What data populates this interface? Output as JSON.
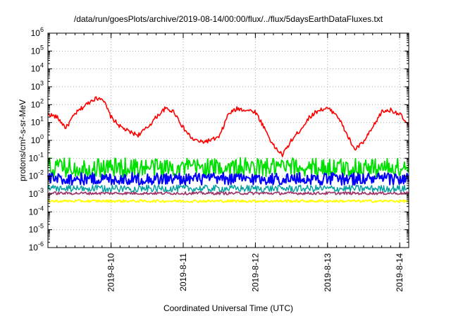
{
  "chart_data": {
    "type": "line",
    "title": "/data/run/goesPlots/archive/2019-08-14/00:00/flux/../flux/5daysEarthDataFluxes.txt",
    "xlabel": "Coordinated Universal Time (UTC)",
    "ylabel": "protons/cm²-s-sr-MeV",
    "yscale": "log",
    "ylim": [
      1e-06,
      1000000.0
    ],
    "xlim": [
      "2019-8-09 03:00",
      "2019-8-14 03:00"
    ],
    "grid": true,
    "y_ticks": [
      {
        "base": "10",
        "exp": "-6"
      },
      {
        "base": "10",
        "exp": "-5"
      },
      {
        "base": "10",
        "exp": "-4"
      },
      {
        "base": "10",
        "exp": "-3"
      },
      {
        "base": "10",
        "exp": "-2"
      },
      {
        "base": "10",
        "exp": "-1"
      },
      {
        "base": "10",
        "exp": "0"
      },
      {
        "base": "10",
        "exp": "1"
      },
      {
        "base": "10",
        "exp": "2"
      },
      {
        "base": "10",
        "exp": "3"
      },
      {
        "base": "10",
        "exp": "4"
      },
      {
        "base": "10",
        "exp": "5"
      },
      {
        "base": "10",
        "exp": "6"
      }
    ],
    "x_ticks": [
      "2019-8-10",
      "2019-8-11",
      "2019-8-12",
      "2019-8-13",
      "2019-8-14"
    ],
    "series": [
      {
        "color": "#ff0000",
        "x": [
          "2019-8-09 03:00",
          "2019-8-09 06:00",
          "2019-8-09 09:00",
          "2019-8-09 12:00",
          "2019-8-09 15:00",
          "2019-8-09 18:00",
          "2019-8-09 21:00",
          "2019-8-10 00:00",
          "2019-8-10 03:00",
          "2019-8-10 06:00",
          "2019-8-10 09:00",
          "2019-8-10 12:00",
          "2019-8-10 15:00",
          "2019-8-10 18:00",
          "2019-8-10 21:00",
          "2019-8-11 00:00",
          "2019-8-11 03:00",
          "2019-8-11 06:00",
          "2019-8-11 09:00",
          "2019-8-11 12:00",
          "2019-8-11 15:00",
          "2019-8-11 18:00",
          "2019-8-11 21:00",
          "2019-8-12 00:00",
          "2019-8-12 03:00",
          "2019-8-12 06:00",
          "2019-8-12 09:00",
          "2019-8-12 12:00",
          "2019-8-12 15:00",
          "2019-8-12 18:00",
          "2019-8-12 21:00",
          "2019-8-13 00:00",
          "2019-8-13 03:00",
          "2019-8-13 06:00",
          "2019-8-13 09:00",
          "2019-8-13 12:00",
          "2019-8-13 15:00",
          "2019-8-13 18:00",
          "2019-8-13 21:00",
          "2019-8-14 00:00",
          "2019-8-14 03:00"
        ],
        "values": [
          30,
          20,
          5,
          30,
          80,
          200,
          250,
          20,
          6,
          3,
          2,
          5,
          20,
          60,
          40,
          5,
          1.2,
          0.8,
          1,
          1.5,
          30,
          60,
          50,
          40,
          5,
          0.5,
          0.15,
          1,
          4,
          20,
          50,
          60,
          30,
          3,
          0.3,
          0.8,
          5,
          40,
          50,
          30,
          6
        ]
      },
      {
        "color": "#00e000",
        "x": [
          "2019-8-09 03:00",
          "2019-8-14 03:00"
        ],
        "values": [
          0.03,
          0.03
        ]
      },
      {
        "color": "#0000ff",
        "x": [
          "2019-8-09 03:00",
          "2019-8-14 03:00"
        ],
        "values": [
          0.007,
          0.007
        ]
      },
      {
        "color": "#00a0a0",
        "x": [
          "2019-8-09 03:00",
          "2019-8-14 03:00"
        ],
        "values": [
          0.002,
          0.002
        ]
      },
      {
        "color": "#a0306a",
        "x": [
          "2019-8-09 03:00",
          "2019-8-14 03:00"
        ],
        "values": [
          0.0011,
          0.0011
        ]
      },
      {
        "color": "#ffff00",
        "x": [
          "2019-8-09 03:00",
          "2019-8-14 03:00"
        ],
        "values": [
          0.0004,
          0.0004
        ]
      }
    ]
  }
}
